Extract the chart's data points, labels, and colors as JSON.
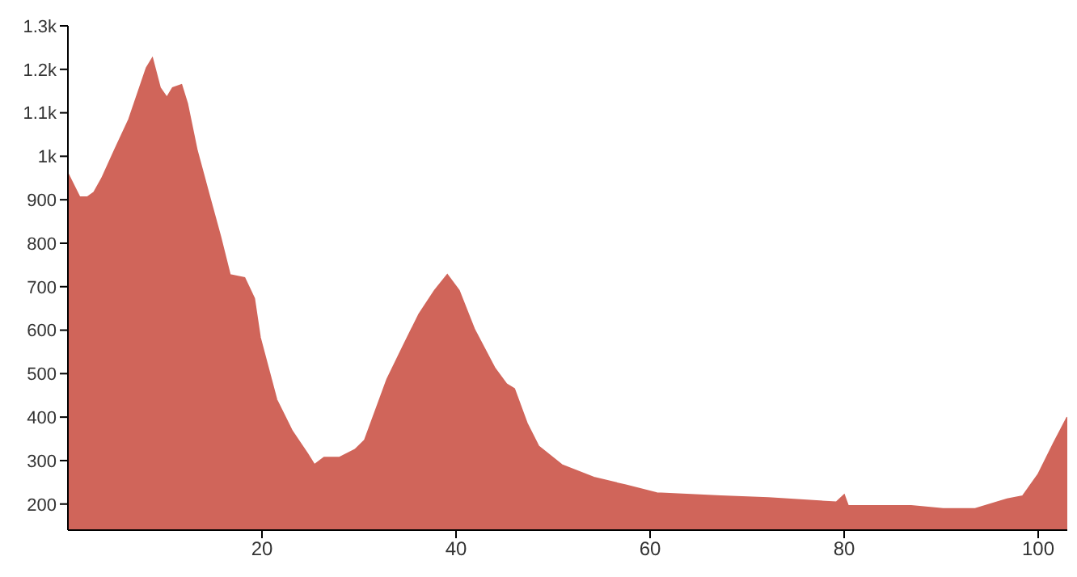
{
  "chart_data": {
    "type": "area",
    "x": [
      0,
      0.4,
      1.2,
      2,
      2.7,
      3.5,
      4.8,
      6.3,
      8.1,
      8.7,
      9.5,
      10.2,
      10.8,
      11.7,
      12.3,
      13.3,
      14.6,
      15.7,
      16.7,
      18.2,
      19.2,
      19.8,
      21.5,
      23.1,
      24.7,
      25.4,
      26.4,
      28,
      29.6,
      30.6,
      32.9,
      34.6,
      36.2,
      37.8,
      39.1,
      40.3,
      41.9,
      44,
      45.2,
      46,
      47.3,
      48.5,
      50.9,
      54.2,
      57.5,
      60.7,
      67.3,
      72.2,
      79.2,
      80,
      80.4,
      86.9,
      90.2,
      93.5,
      96.8,
      98.4,
      100,
      101.6,
      103
    ],
    "series": [
      {
        "color": "#d0655a",
        "values": [
          960,
          942,
          906,
          906,
          917,
          949,
          1013,
          1085,
          1203,
          1225,
          1157,
          1135,
          1157,
          1164,
          1121,
          1013,
          906,
          816,
          727,
          720,
          673,
          583,
          440,
          368,
          315,
          290,
          307,
          307,
          325,
          347,
          487,
          565,
          637,
          691,
          727,
          691,
          601,
          512,
          476,
          465,
          386,
          333,
          290,
          261,
          243,
          225,
          218,
          214,
          204,
          221,
          196,
          196,
          189,
          189,
          211,
          218,
          268,
          340,
          400
        ]
      }
    ],
    "xlim": [
      0,
      103
    ],
    "xticks": [
      20,
      40,
      60,
      80,
      100
    ],
    "ylim": [
      140,
      1300
    ],
    "yticks": [
      200,
      300,
      400,
      500,
      600,
      700,
      800,
      900,
      {
        "value": 1000,
        "label": "1k"
      },
      {
        "value": 1100,
        "label": "1.1k"
      },
      {
        "value": 1200,
        "label": "1.2k"
      },
      {
        "value": 1300,
        "label": "1.3k"
      }
    ],
    "grid": false,
    "legend": false
  }
}
